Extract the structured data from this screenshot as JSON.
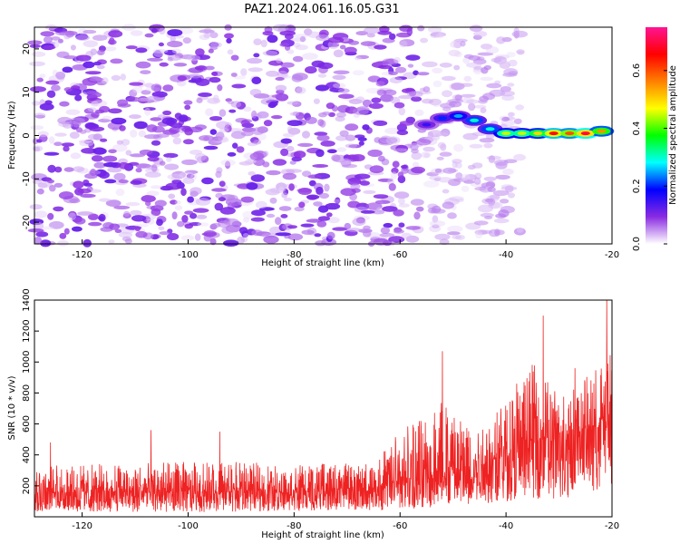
{
  "figure": {
    "title": "PAZ1.2024.061.16.05.G31"
  },
  "chart_data": [
    {
      "type": "heatmap",
      "xlabel": "Height of straight line (km)",
      "ylabel": "Frequency (Hz)",
      "xlim": [
        -129,
        -20
      ],
      "ylim": [
        -25,
        25
      ],
      "x_ticks": [
        -120,
        -100,
        -80,
        -60,
        -40,
        -20
      ],
      "y_ticks": [
        -20,
        -10,
        0,
        10,
        20
      ],
      "colorbar": {
        "label": "Normalized spectral amplitude",
        "range": [
          0.0,
          0.75
        ],
        "ticks": [
          0.0,
          0.2,
          0.4,
          0.6
        ],
        "tick_labels": [
          "0.0",
          "0.2",
          "0.4",
          "0.6"
        ],
        "colormap_stops": [
          "#ffffff",
          "#8a2be2",
          "#0000ff",
          "#00ffff",
          "#00ff00",
          "#ffff00",
          "#ff8000",
          "#ff0000",
          "#ff1493"
        ]
      },
      "signal_track": [
        {
          "x": -55,
          "y": 2.5,
          "amp": 0.15
        },
        {
          "x": -52,
          "y": 4.0,
          "amp": 0.2
        },
        {
          "x": -49,
          "y": 4.5,
          "amp": 0.25
        },
        {
          "x": -46,
          "y": 3.5,
          "amp": 0.3
        },
        {
          "x": -43,
          "y": 1.5,
          "amp": 0.3
        },
        {
          "x": -40,
          "y": 0.5,
          "amp": 0.45
        },
        {
          "x": -37,
          "y": 0.5,
          "amp": 0.45
        },
        {
          "x": -34,
          "y": 0.5,
          "amp": 0.5
        },
        {
          "x": -31,
          "y": 0.5,
          "amp": 0.65
        },
        {
          "x": -28,
          "y": 0.5,
          "amp": 0.6
        },
        {
          "x": -25,
          "y": 0.5,
          "amp": 0.7
        },
        {
          "x": -22,
          "y": 1.0,
          "amp": 0.55
        }
      ],
      "noise_region_x": [
        -129,
        -55
      ],
      "noise_amplitude_range": [
        0.0,
        0.12
      ]
    },
    {
      "type": "line",
      "xlabel": "Height of straight line (km)",
      "ylabel": "SNR (10 * v/v)",
      "xlim": [
        -129,
        -20
      ],
      "ylim": [
        0,
        1400
      ],
      "x_ticks": [
        -120,
        -100,
        -80,
        -60,
        -40,
        -20
      ],
      "y_ticks": [
        200,
        400,
        600,
        800,
        1000,
        1200,
        1400
      ],
      "series": [
        {
          "color": "#ee2222",
          "envelope": [
            {
              "x": -129,
              "low": 30,
              "high": 330,
              "mean": 160
            },
            {
              "x": -110,
              "low": 30,
              "high": 350,
              "mean": 160
            },
            {
              "x": -95,
              "low": 30,
              "high": 360,
              "mean": 165
            },
            {
              "x": -80,
              "low": 40,
              "high": 340,
              "mean": 170
            },
            {
              "x": -65,
              "low": 40,
              "high": 350,
              "mean": 190
            },
            {
              "x": -58,
              "low": 50,
              "high": 650,
              "mean": 240
            },
            {
              "x": -52,
              "low": 60,
              "high": 800,
              "mean": 300
            },
            {
              "x": -45,
              "low": 80,
              "high": 600,
              "mean": 330
            },
            {
              "x": -40,
              "low": 100,
              "high": 750,
              "mean": 400
            },
            {
              "x": -35,
              "low": 120,
              "high": 1000,
              "mean": 500
            },
            {
              "x": -30,
              "low": 100,
              "high": 800,
              "mean": 470
            },
            {
              "x": -25,
              "low": 150,
              "high": 900,
              "mean": 560
            },
            {
              "x": -20,
              "low": 200,
              "high": 1100,
              "mean": 650
            }
          ],
          "peaks": [
            {
              "x": -126,
              "y": 480
            },
            {
              "x": -107,
              "y": 560
            },
            {
              "x": -94,
              "y": 550
            },
            {
              "x": -52,
              "y": 1070
            },
            {
              "x": -38,
              "y": 860
            },
            {
              "x": -33,
              "y": 1300
            },
            {
              "x": -27,
              "y": 960
            },
            {
              "x": -21,
              "y": 1400
            }
          ]
        }
      ]
    }
  ]
}
